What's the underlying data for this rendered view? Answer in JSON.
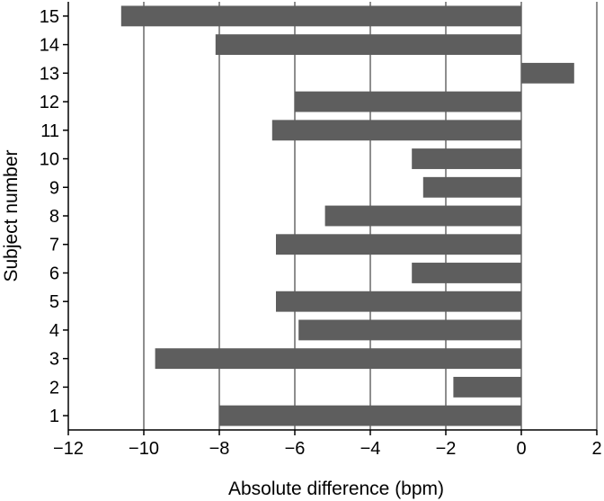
{
  "chart_data": {
    "type": "bar",
    "orientation": "horizontal",
    "title": "",
    "xlabel": "Absolute difference (bpm)",
    "ylabel": "Subject number",
    "categories": [
      "1",
      "2",
      "3",
      "4",
      "5",
      "6",
      "7",
      "8",
      "9",
      "10",
      "11",
      "12",
      "13",
      "14",
      "15"
    ],
    "values": [
      -8.0,
      -1.8,
      -9.7,
      -5.9,
      -6.5,
      -2.9,
      -6.5,
      -5.2,
      -2.6,
      -2.9,
      -6.6,
      -6.0,
      1.4,
      -8.1,
      -10.6
    ],
    "xlim": [
      -12,
      2
    ],
    "xticks": [
      -12,
      -10,
      -8,
      -6,
      -4,
      -2,
      0,
      2
    ],
    "xtick_labels": [
      "−12",
      "−10",
      "−8",
      "−6",
      "−4",
      "−2",
      "0",
      "2"
    ],
    "grid": "vertical",
    "legend": "none",
    "bar_color": "#5e5e5e"
  }
}
